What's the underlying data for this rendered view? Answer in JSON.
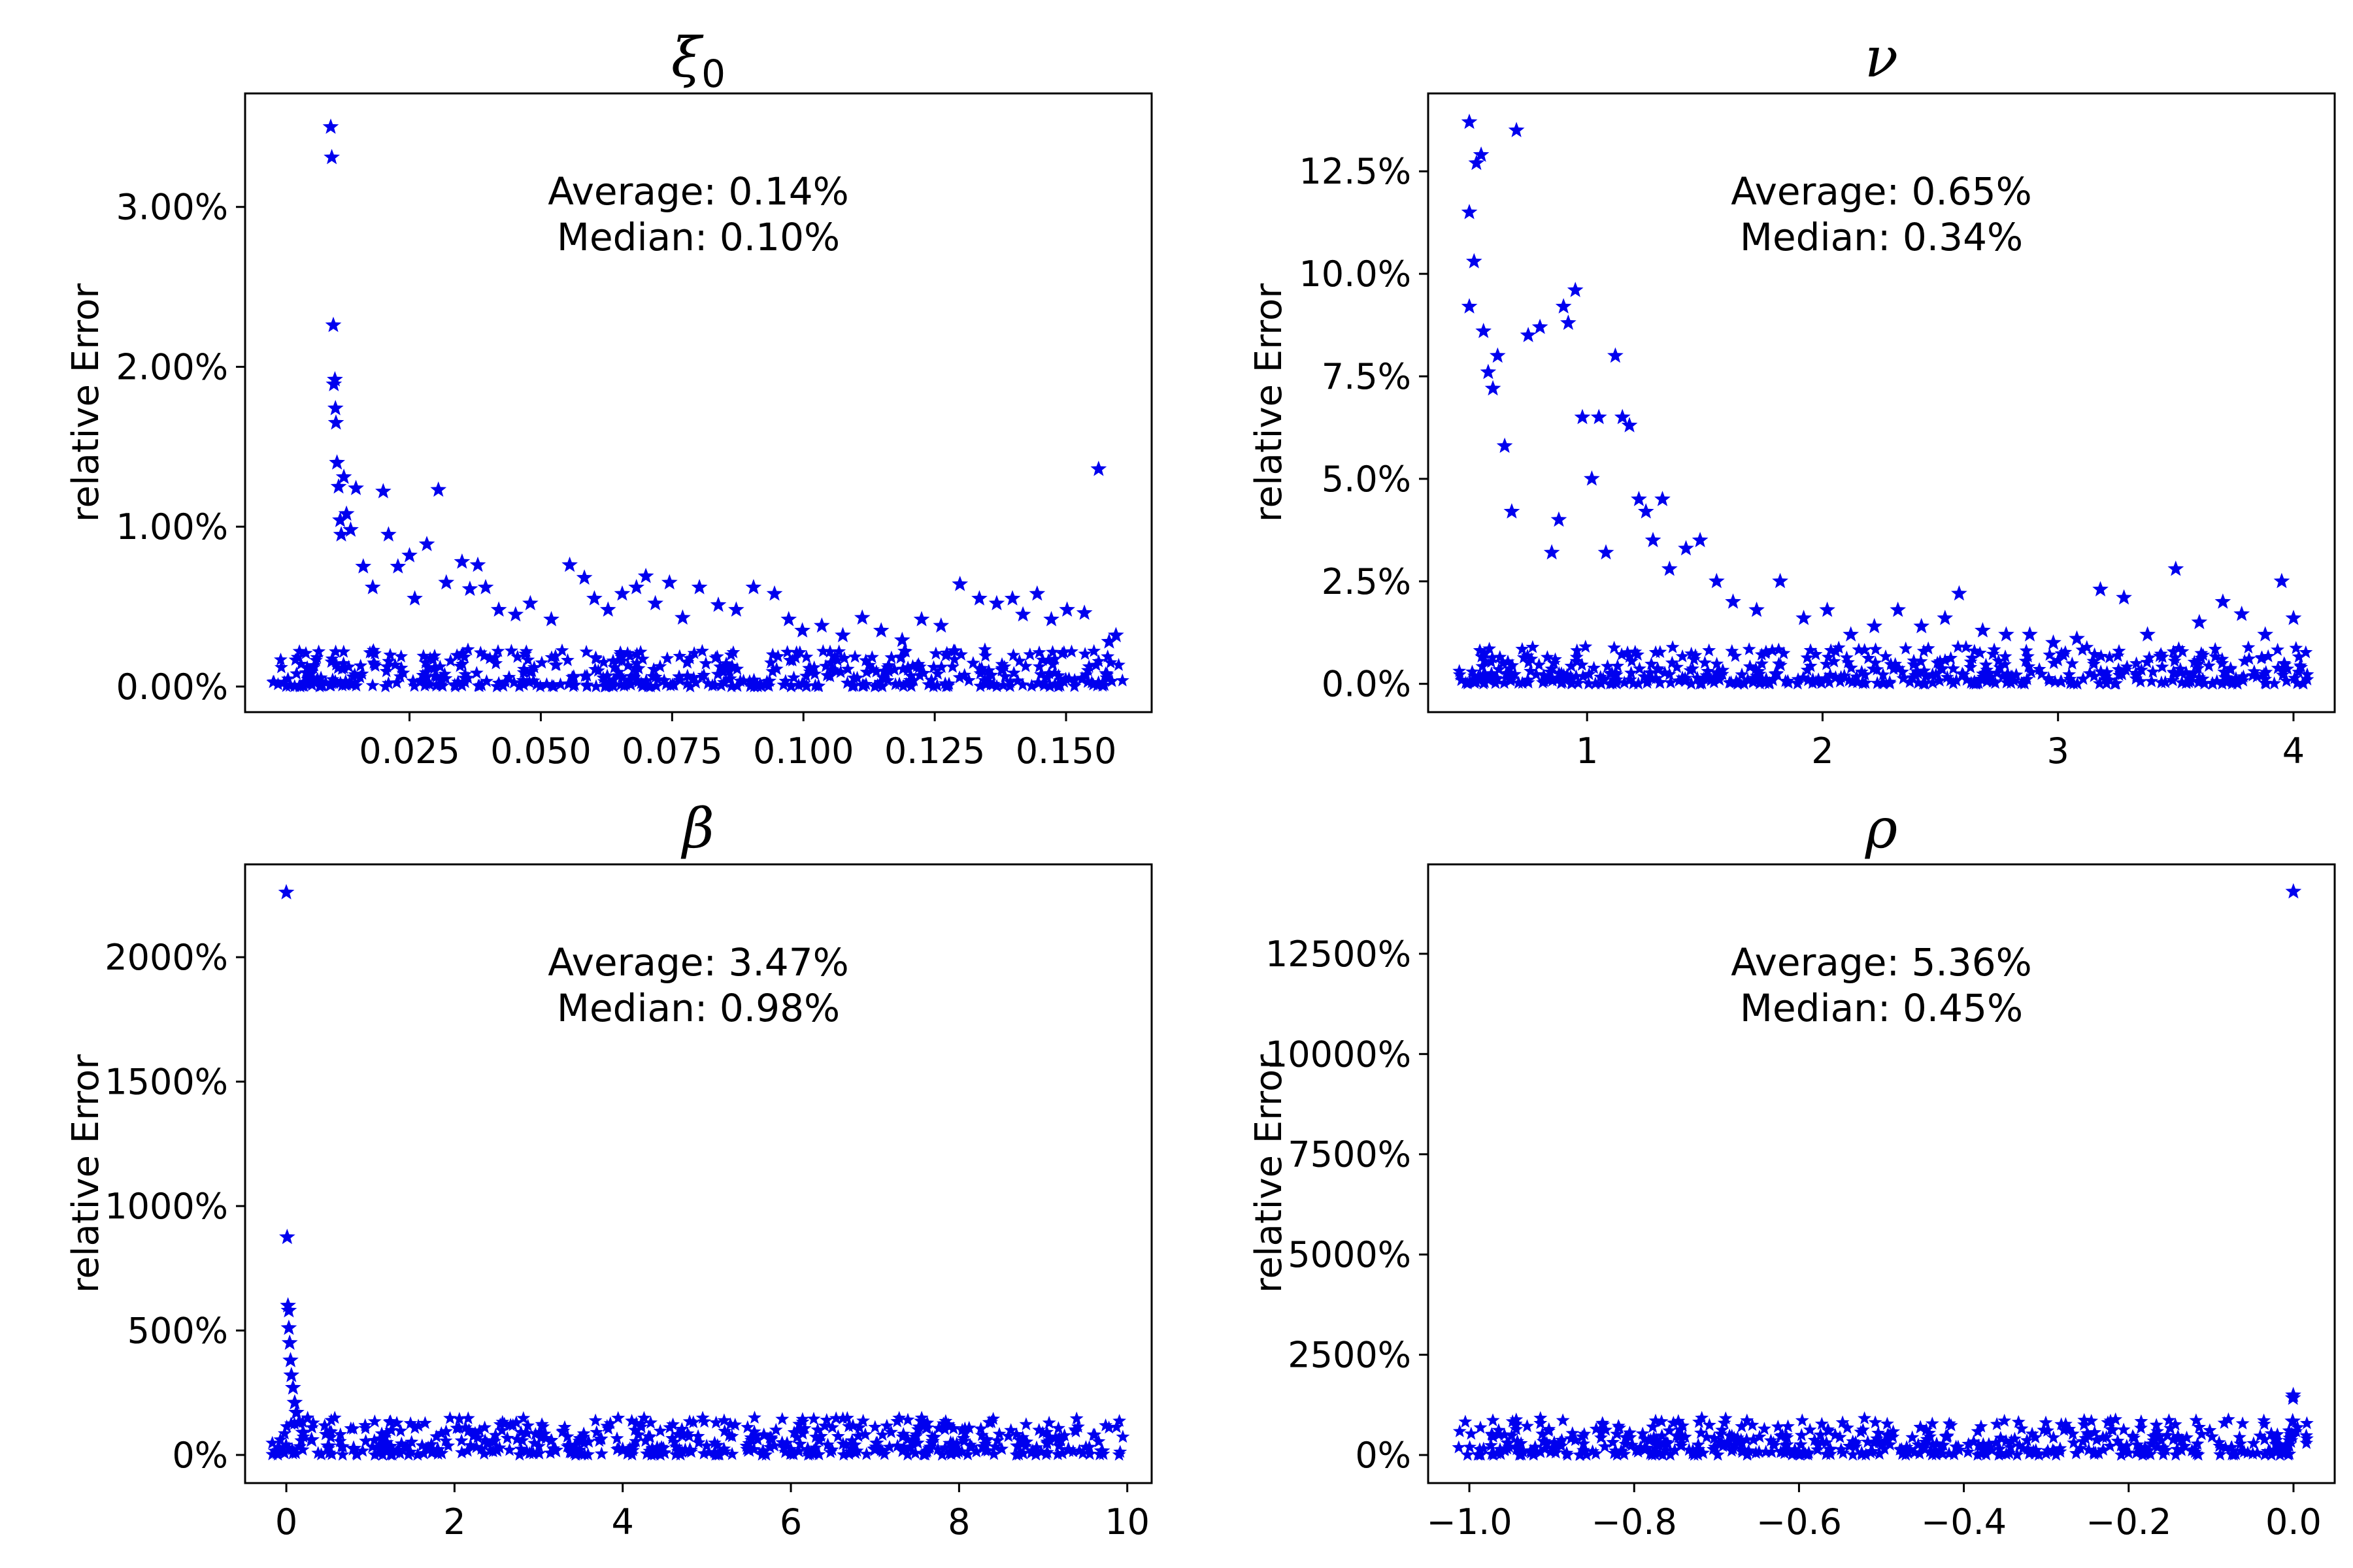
{
  "chart_data": [
    {
      "type": "scatter",
      "title": "ξ",
      "title_subscript": "0",
      "xlabel": "",
      "ylabel": "relative Error",
      "xlim": [
        -0.0063,
        0.1663
      ],
      "ylim": [
        -0.0016,
        0.0371
      ],
      "x_ticks": [
        0.025,
        0.05,
        0.075,
        0.1,
        0.125,
        0.15
      ],
      "x_tick_labels": [
        "0.025",
        "0.050",
        "0.075",
        "0.100",
        "0.125",
        "0.150"
      ],
      "y_ticks": [
        0.0,
        0.01,
        0.02,
        0.03
      ],
      "y_tick_labels": [
        "0.00%",
        "1.00%",
        "2.00%",
        "3.00%"
      ],
      "annotation": {
        "average": "Average: 0.14%",
        "median": "Median:   0.10%"
      },
      "marker": "star",
      "color": "#0000ee",
      "points": {
        "x": [
          0.01,
          0.0102,
          0.0105,
          0.0106,
          0.0108,
          0.0109,
          0.011,
          0.0112,
          0.0115,
          0.0118,
          0.012,
          0.0125,
          0.013,
          0.0138,
          0.0148,
          0.0162,
          0.018,
          0.02,
          0.021,
          0.0228,
          0.025,
          0.026,
          0.0283,
          0.0305,
          0.032,
          0.035,
          0.0365,
          0.038,
          0.0395,
          0.042,
          0.0452,
          0.048,
          0.052,
          0.0555,
          0.0583,
          0.0602,
          0.0628,
          0.0655,
          0.0682,
          0.07,
          0.0718,
          0.0745,
          0.077,
          0.0802,
          0.0838,
          0.0872,
          0.0905,
          0.0945,
          0.0972,
          0.0998,
          0.1035,
          0.1075,
          0.1112,
          0.1148,
          0.1188,
          0.1225,
          0.1262,
          0.1298,
          0.1335,
          0.1368,
          0.1398,
          0.1418,
          0.1445,
          0.1472,
          0.1502,
          0.1535,
          0.1562,
          0.1582,
          0.1595
        ],
        "y": [
          0.035,
          0.0331,
          0.0226,
          0.0189,
          0.0192,
          0.0174,
          0.0165,
          0.014,
          0.0125,
          0.0104,
          0.0095,
          0.0131,
          0.0108,
          0.0098,
          0.0124,
          0.0075,
          0.0062,
          0.0122,
          0.0095,
          0.0075,
          0.0082,
          0.0055,
          0.0089,
          0.0123,
          0.0065,
          0.0078,
          0.0061,
          0.0076,
          0.0062,
          0.0048,
          0.0045,
          0.0052,
          0.0042,
          0.0076,
          0.0068,
          0.0055,
          0.0048,
          0.0058,
          0.0062,
          0.0069,
          0.0052,
          0.0065,
          0.0043,
          0.0062,
          0.0051,
          0.0048,
          0.0062,
          0.0058,
          0.0042,
          0.0035,
          0.0038,
          0.0032,
          0.0043,
          0.0035,
          0.0029,
          0.0042,
          0.0038,
          0.0064,
          0.0055,
          0.0052,
          0.0055,
          0.0045,
          0.0058,
          0.0042,
          0.0048,
          0.0046,
          0.0136,
          0.0028,
          0.0032
        ]
      }
    },
    {
      "type": "scatter",
      "title": "ν",
      "xlabel": "",
      "ylabel": "relative Error",
      "xlim": [
        0.325,
        4.175
      ],
      "ylim": [
        -0.0069,
        0.144
      ],
      "x_ticks": [
        1,
        2,
        3,
        4
      ],
      "x_tick_labels": [
        "1",
        "2",
        "3",
        "4"
      ],
      "y_ticks": [
        0.0,
        0.025,
        0.05,
        0.075,
        0.1,
        0.125
      ],
      "y_tick_labels": [
        "0.0%",
        "2.5%",
        "5.0%",
        "7.5%",
        "10.0%",
        "12.5%"
      ],
      "annotation": {
        "average": "Average: 0.65%",
        "median": "Median:   0.34%"
      },
      "marker": "star",
      "color": "#0000ee",
      "points": {
        "x": [
          0.5,
          0.5,
          0.5,
          0.52,
          0.53,
          0.55,
          0.56,
          0.58,
          0.6,
          0.62,
          0.65,
          0.68,
          0.7,
          0.75,
          0.8,
          0.85,
          0.88,
          0.9,
          0.92,
          0.95,
          0.98,
          1.02,
          1.05,
          1.08,
          1.12,
          1.15,
          1.18,
          1.22,
          1.25,
          1.28,
          1.32,
          1.35,
          1.42,
          1.48,
          1.55,
          1.62,
          1.72,
          1.82,
          1.92,
          2.02,
          2.12,
          2.22,
          2.32,
          2.42,
          2.52,
          2.58,
          2.68,
          2.78,
          2.88,
          2.98,
          3.08,
          3.18,
          3.28,
          3.38,
          3.5,
          3.6,
          3.7,
          3.78,
          3.88,
          3.95,
          4.0
        ],
        "y": [
          0.137,
          0.115,
          0.092,
          0.103,
          0.127,
          0.129,
          0.086,
          0.076,
          0.072,
          0.08,
          0.058,
          0.042,
          0.135,
          0.085,
          0.087,
          0.032,
          0.04,
          0.092,
          0.088,
          0.096,
          0.065,
          0.05,
          0.065,
          0.032,
          0.08,
          0.065,
          0.063,
          0.045,
          0.042,
          0.035,
          0.045,
          0.028,
          0.033,
          0.035,
          0.025,
          0.02,
          0.018,
          0.025,
          0.016,
          0.018,
          0.012,
          0.014,
          0.018,
          0.014,
          0.016,
          0.022,
          0.013,
          0.012,
          0.012,
          0.01,
          0.011,
          0.023,
          0.021,
          0.012,
          0.028,
          0.015,
          0.02,
          0.017,
          0.012,
          0.025,
          0.016
        ]
      }
    },
    {
      "type": "scatter",
      "title": "β",
      "xlabel": "",
      "ylabel": "relative Error",
      "xlim": [
        -0.49,
        10.29
      ],
      "ylim": [
        -1.13,
        23.73
      ],
      "x_ticks": [
        0,
        2,
        4,
        6,
        8,
        10
      ],
      "x_tick_labels": [
        "0",
        "2",
        "4",
        "6",
        "8",
        "10"
      ],
      "y_ticks": [
        0,
        5,
        10,
        15,
        20
      ],
      "y_tick_labels": [
        "0%",
        "500%",
        "1000%",
        "1500%",
        "2000%"
      ],
      "annotation": {
        "average": "Average: 3.47%",
        "median": "Median:   0.98%"
      },
      "marker": "star",
      "color": "#0000ee",
      "points": {
        "x": [
          0.0,
          0.01,
          0.02,
          0.03,
          0.03,
          0.04,
          0.05,
          0.06,
          0.08,
          0.1,
          0.12,
          0.15,
          0.2,
          0.3,
          0.5,
          0.8,
          1.2,
          1.8,
          2.5,
          3.2,
          4.0,
          4.8,
          5.5,
          6.2,
          7.0,
          7.9,
          8.7,
          9.3,
          9.7
        ],
        "y": [
          22.6,
          8.75,
          6.0,
          5.8,
          5.1,
          4.5,
          3.8,
          3.2,
          2.7,
          2.1,
          1.7,
          1.3,
          0.9,
          0.6,
          0.35,
          0.25,
          0.22,
          0.2,
          0.2,
          0.18,
          0.2,
          0.18,
          0.2,
          0.2,
          0.22,
          0.45,
          0.35,
          0.2,
          0.15
        ]
      }
    },
    {
      "type": "scatter",
      "title": "ρ",
      "xlabel": "",
      "ylabel": "relative Error",
      "xlim": [
        -1.05,
        0.05
      ],
      "ylim": [
        -7.0,
        147.3
      ],
      "x_ticks": [
        -1.0,
        -0.8,
        -0.6,
        -0.4,
        -0.2,
        0.0
      ],
      "x_tick_labels": [
        "−1.0",
        "−0.8",
        "−0.6",
        "−0.4",
        "−0.2",
        "0.0"
      ],
      "y_ticks": [
        0,
        25,
        50,
        75,
        100,
        125
      ],
      "y_tick_labels": [
        "0%",
        "2500%",
        "5000%",
        "7500%",
        "10000%",
        "12500%"
      ],
      "annotation": {
        "average": "Average: 5.36%",
        "median": "Median:   0.45%"
      },
      "marker": "star",
      "color": "#0000ee",
      "points": {
        "x": [
          -0.0001,
          -0.0003,
          -0.0006,
          -0.001,
          -0.002,
          -0.004,
          -0.006,
          -0.01,
          -0.015,
          -0.02,
          -0.03
        ],
        "y": [
          140.5,
          14.9,
          14.2,
          8.4,
          5.0,
          3.5,
          2.5,
          1.8,
          1.4,
          1.1,
          0.8
        ]
      }
    }
  ]
}
